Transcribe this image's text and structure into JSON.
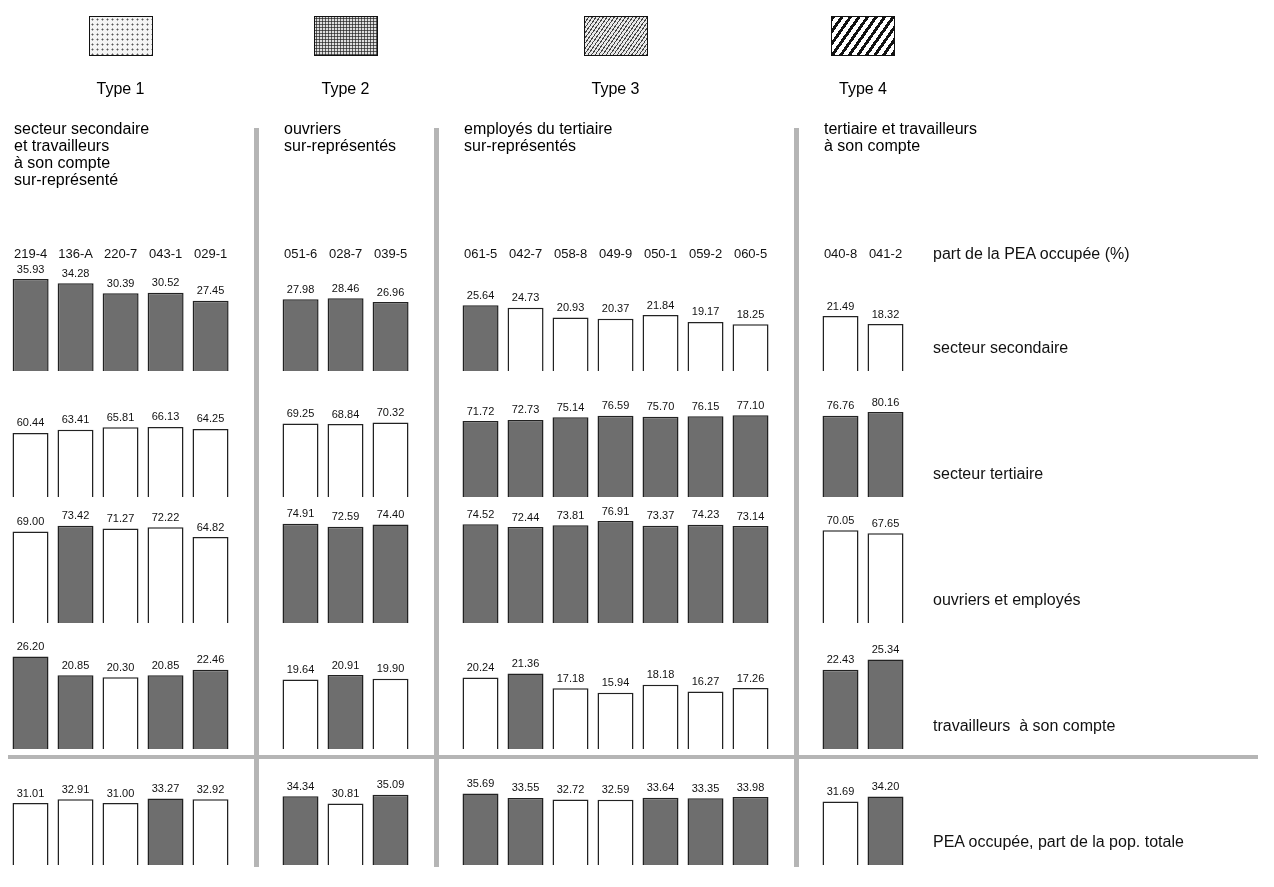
{
  "chart_data": [
    {
      "type": "bar",
      "xlabel": "part de la PEA occupée (%)",
      "tick_labels": "x",
      "categories": [
        "219-4",
        "136-A",
        "220-7",
        "043-1",
        "029-1",
        null,
        "051-6",
        "028-7",
        "039-5",
        null,
        "061-5",
        "042-7",
        "058-8",
        "049-9",
        "050-1",
        "059-2",
        "060-5",
        null,
        "040-8",
        "041-2"
      ],
      "series": [
        {
          "name": "secteur secondaire",
          "values": [
            35.93,
            34.28,
            30.39,
            30.52,
            27.45,
            null,
            27.98,
            28.46,
            26.96,
            null,
            25.64,
            24.73,
            20.93,
            20.37,
            21.84,
            19.17,
            18.25,
            null,
            21.49,
            18.32
          ],
          "value_labels": [
            "35.93",
            "34.28",
            "30.39",
            "30.52",
            "27.45",
            null,
            "27.98",
            "28.46",
            "26.96",
            null,
            "25.64",
            "24.73",
            "20.93",
            "20.37",
            "21.84",
            "19.17",
            "18.25",
            null,
            "21.49",
            "18.32"
          ],
          "colors": [
            "#6e6e6e",
            "#6e6e6e",
            "#6e6e6e",
            "#6e6e6e",
            "#6e6e6e",
            "#ffffff",
            "#6e6e6e",
            "#6e6e6e",
            "#6e6e6e",
            "#ffffff",
            "#6e6e6e",
            "#ffffff",
            "#ffffff",
            "#ffffff",
            "#ffffff",
            "#ffffff",
            "#ffffff",
            "#ffffff",
            "#ffffff",
            "#ffffff"
          ]
        }
      ],
      "annotations": [
        "Type 1",
        "secteur secondaire\net travailleurs\nà son compte\nsur-représenté",
        "Type 2",
        "ouvriers\nsur-représentés",
        "Type 3",
        "employés du tertiaire\nsur-représentés",
        "Type 4",
        "tertiaire et travailleurs\nà son compte"
      ]
    },
    {
      "type": "bar",
      "tick_labels": false,
      "categories": [
        null,
        null,
        null,
        null,
        null,
        null,
        null,
        null,
        null,
        null,
        null,
        null,
        null,
        null,
        null,
        null,
        null,
        null,
        null,
        null
      ],
      "series": [
        {
          "name": "secteur tertiaire",
          "values": [
            60.44,
            63.41,
            65.81,
            66.13,
            64.25,
            null,
            69.25,
            68.84,
            70.32,
            null,
            71.72,
            72.73,
            75.14,
            76.59,
            75.7,
            76.15,
            77.1,
            null,
            76.76,
            80.16
          ],
          "value_labels": [
            "60.44",
            "63.41",
            "65.81",
            "66.13",
            "64.25",
            null,
            "69.25",
            "68.84",
            "70.32",
            null,
            "71.72",
            "72.73",
            "75.14",
            "76.59",
            "75.70",
            "76.15",
            "77.10",
            null,
            "76.76",
            "80.16"
          ],
          "colors": [
            "#ffffff",
            "#ffffff",
            "#ffffff",
            "#ffffff",
            "#ffffff",
            "#ffffff",
            "#ffffff",
            "#ffffff",
            "#ffffff",
            "#ffffff",
            "#6e6e6e",
            "#6e6e6e",
            "#6e6e6e",
            "#6e6e6e",
            "#6e6e6e",
            "#6e6e6e",
            "#6e6e6e",
            "#ffffff",
            "#6e6e6e",
            "#6e6e6e"
          ]
        }
      ]
    },
    {
      "type": "bar",
      "tick_labels": false,
      "categories": [
        null,
        null,
        null,
        null,
        null,
        null,
        null,
        null,
        null,
        null,
        null,
        null,
        null,
        null,
        null,
        null,
        null,
        null,
        null,
        null
      ],
      "series": [
        {
          "name": "ouvriers et employés",
          "values": [
            69.0,
            73.42,
            71.27,
            72.22,
            64.82,
            null,
            74.91,
            72.59,
            74.4,
            null,
            74.52,
            72.44,
            73.81,
            76.91,
            73.37,
            74.23,
            73.14,
            null,
            70.05,
            67.65
          ],
          "value_labels": [
            "69.00",
            "73.42",
            "71.27",
            "72.22",
            "64.82",
            null,
            "74.91",
            "72.59",
            "74.40",
            null,
            "74.52",
            "72.44",
            "73.81",
            "76.91",
            "73.37",
            "74.23",
            "73.14",
            null,
            "70.05",
            "67.65"
          ],
          "colors": [
            "#ffffff",
            "#6e6e6e",
            "#ffffff",
            "#ffffff",
            "#ffffff",
            "#ffffff",
            "#6e6e6e",
            "#6e6e6e",
            "#6e6e6e",
            "#ffffff",
            "#6e6e6e",
            "#6e6e6e",
            "#6e6e6e",
            "#6e6e6e",
            "#6e6e6e",
            "#6e6e6e",
            "#6e6e6e",
            "#ffffff",
            "#ffffff",
            "#ffffff"
          ]
        }
      ]
    },
    {
      "type": "bar",
      "tick_labels": false,
      "categories": [
        null,
        null,
        null,
        null,
        null,
        null,
        null,
        null,
        null,
        null,
        null,
        null,
        null,
        null,
        null,
        null,
        null,
        null,
        null,
        null
      ],
      "series": [
        {
          "name": "travailleurs  à son compte",
          "values": [
            26.2,
            20.85,
            20.3,
            20.85,
            22.46,
            null,
            19.64,
            20.91,
            19.9,
            null,
            20.24,
            21.36,
            17.18,
            15.94,
            18.18,
            16.27,
            17.26,
            null,
            22.43,
            25.34
          ],
          "value_labels": [
            "26.20",
            "20.85",
            "20.30",
            "20.85",
            "22.46",
            null,
            "19.64",
            "20.91",
            "19.90",
            null,
            "20.24",
            "21.36",
            "17.18",
            "15.94",
            "18.18",
            "16.27",
            "17.26",
            null,
            "22.43",
            "25.34"
          ],
          "colors": [
            "#6e6e6e",
            "#6e6e6e",
            "#ffffff",
            "#6e6e6e",
            "#6e6e6e",
            "#ffffff",
            "#ffffff",
            "#6e6e6e",
            "#ffffff",
            "#ffffff",
            "#ffffff",
            "#6e6e6e",
            "#ffffff",
            "#ffffff",
            "#ffffff",
            "#ffffff",
            "#ffffff",
            "#ffffff",
            "#6e6e6e",
            "#6e6e6e"
          ]
        }
      ]
    },
    {
      "type": "bar",
      "tick_labels": false,
      "categories": [
        null,
        null,
        null,
        null,
        null,
        null,
        null,
        null,
        null,
        null,
        null,
        null,
        null,
        null,
        null,
        null,
        null,
        null,
        null,
        null
      ],
      "series": [
        {
          "name": "PEA occupée, part de la pop. totale",
          "values": [
            31.01,
            32.91,
            31.0,
            33.27,
            32.92,
            null,
            34.34,
            30.81,
            35.09,
            null,
            35.69,
            33.55,
            32.72,
            32.59,
            33.64,
            33.35,
            33.98,
            null,
            31.69,
            34.2
          ],
          "value_labels": [
            "31.01",
            "32.91",
            "31.00",
            "33.27",
            "32.92",
            null,
            "34.34",
            "30.81",
            "35.09",
            null,
            "35.69",
            "33.55",
            "32.72",
            "32.59",
            "33.64",
            "33.35",
            "33.98",
            null,
            "31.69",
            "34.20"
          ],
          "colors": [
            "#ffffff",
            "#ffffff",
            "#ffffff",
            "#6e6e6e",
            "#ffffff",
            "#ffffff",
            "#6e6e6e",
            "#ffffff",
            "#6e6e6e",
            "#ffffff",
            "#6e6e6e",
            "#6e6e6e",
            "#ffffff",
            "#ffffff",
            "#6e6e6e",
            "#6e6e6e",
            "#6e6e6e",
            "#ffffff",
            "#ffffff",
            "#6e6e6e"
          ]
        }
      ]
    }
  ]
}
